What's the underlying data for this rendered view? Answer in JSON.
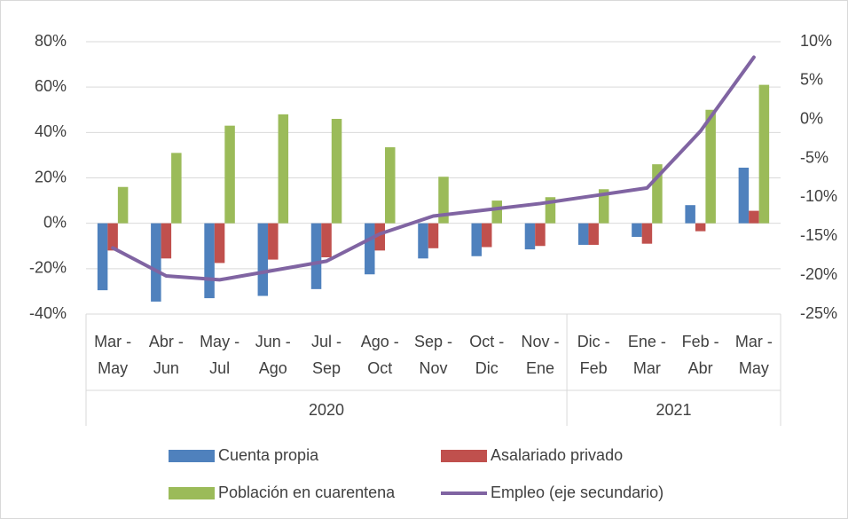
{
  "chart_data": {
    "type": "bar-line",
    "categories": [
      [
        "Mar -",
        "May"
      ],
      [
        "Abr -",
        "Jun"
      ],
      [
        "May -",
        "Jul"
      ],
      [
        "Jun -",
        "Ago"
      ],
      [
        "Jul -",
        "Sep"
      ],
      [
        "Ago -",
        "Oct"
      ],
      [
        "Sep -",
        "Nov"
      ],
      [
        "Oct -",
        "Dic"
      ],
      [
        "Nov -",
        "Ene"
      ],
      [
        "Dic -",
        "Feb"
      ],
      [
        "Ene -",
        "Mar"
      ],
      [
        "Feb -",
        "Abr"
      ],
      [
        "Mar -",
        "May"
      ]
    ],
    "groups": [
      {
        "label": "2020",
        "span": 9
      },
      {
        "label": "2021",
        "span": 4
      }
    ],
    "series": [
      {
        "name": "Cuenta propia",
        "color": "#4f81bd",
        "type": "bar",
        "values": [
          -29.5,
          -34.5,
          -33,
          -32,
          -29,
          -22.5,
          -15.5,
          -14.5,
          -11.5,
          -9.5,
          -6,
          8,
          24.5
        ]
      },
      {
        "name": "Asalariado privado",
        "color": "#c0504d",
        "type": "bar",
        "values": [
          -12,
          -15.5,
          -17.5,
          -16,
          -15,
          -12,
          -11,
          -10.5,
          -10,
          -9.5,
          -9,
          -3.5,
          5.5
        ]
      },
      {
        "name": "Población en cuarentena",
        "color": "#9bbb59",
        "type": "bar",
        "values": [
          16,
          31,
          43,
          48,
          46,
          33.5,
          20.5,
          10,
          11.5,
          15,
          26,
          50,
          61
        ]
      },
      {
        "name": "Empleo (eje secundario)",
        "color": "#8064a2",
        "type": "line",
        "axis": "y2",
        "values": [
          -16.5,
          -20.1,
          -20.6,
          -19.4,
          -18.2,
          -14.7,
          -12.4,
          -11.6,
          -10.8,
          -9.8,
          -8.8,
          -1.5,
          8
        ]
      }
    ],
    "ylim": [
      -40,
      80
    ],
    "yticks": [
      {
        "value": -40,
        "label": "-40%"
      },
      {
        "value": -20,
        "label": "-20%"
      },
      {
        "value": 0,
        "label": "0%"
      },
      {
        "value": 20,
        "label": "20%"
      },
      {
        "value": 40,
        "label": "40%"
      },
      {
        "value": 60,
        "label": "60%"
      },
      {
        "value": 80,
        "label": "80%"
      }
    ],
    "y2lim": [
      -25,
      10
    ],
    "y2ticks": [
      {
        "value": -25,
        "label": "-25%"
      },
      {
        "value": -20,
        "label": "-20%"
      },
      {
        "value": -15,
        "label": "-15%"
      },
      {
        "value": -10,
        "label": "-10%"
      },
      {
        "value": -5,
        "label": "-5%"
      },
      {
        "value": 0,
        "label": "0%"
      },
      {
        "value": 5,
        "label": "5%"
      },
      {
        "value": 10,
        "label": "10%"
      }
    ],
    "grid": true
  }
}
